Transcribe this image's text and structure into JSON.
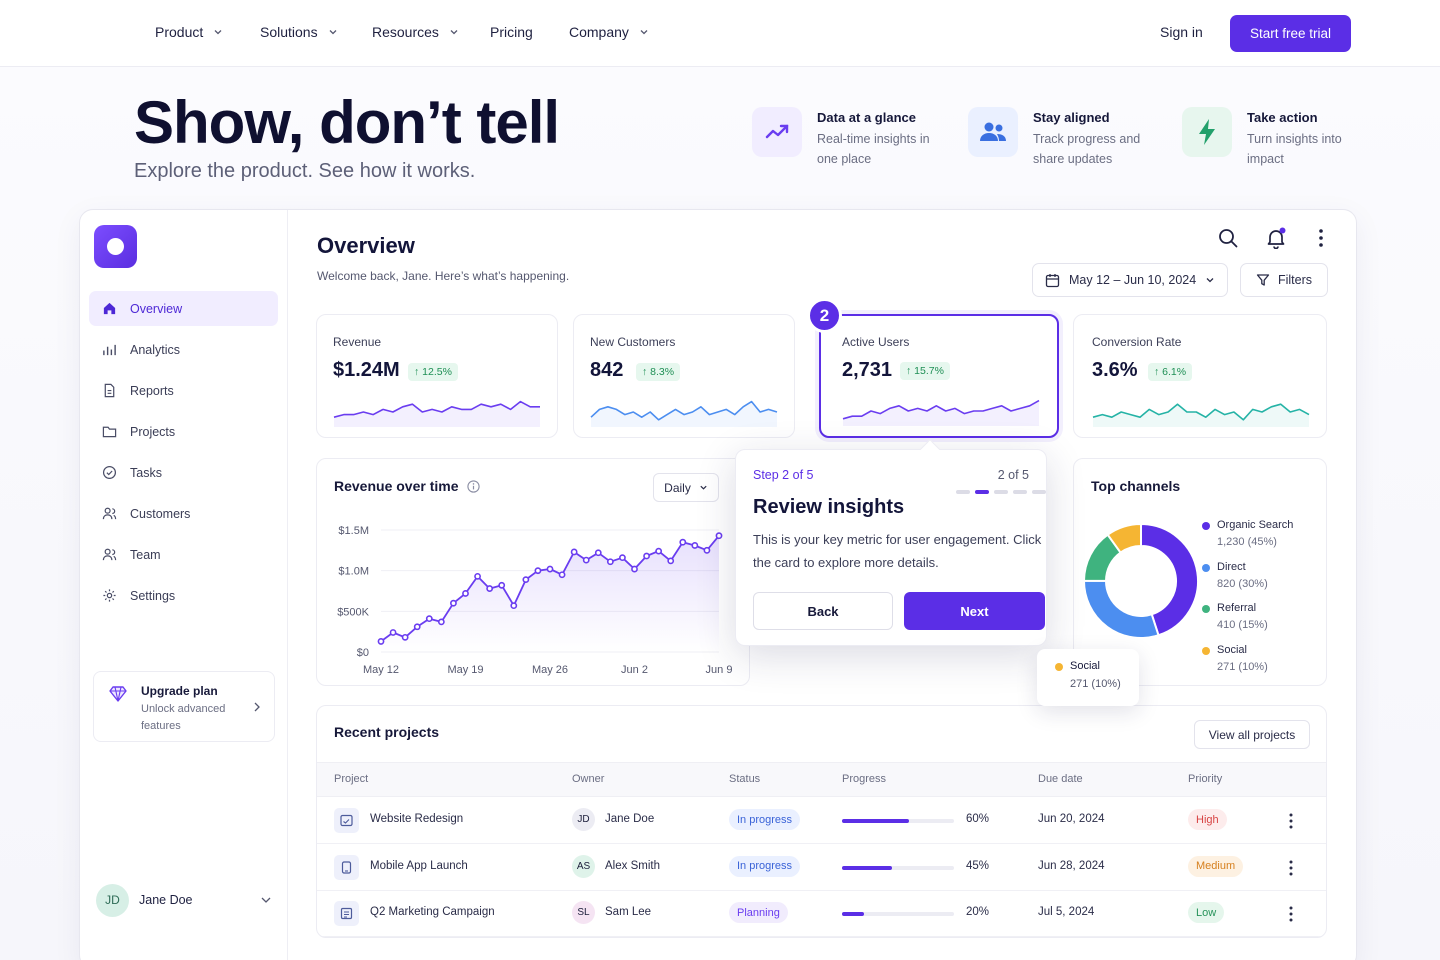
{
  "nav": {
    "items": [
      {
        "label": "Product",
        "has_menu": true
      },
      {
        "label": "Solutions",
        "has_menu": true
      },
      {
        "label": "Resources",
        "has_menu": true
      },
      {
        "label": "Pricing",
        "has_menu": false
      },
      {
        "label": "Company",
        "has_menu": true
      }
    ],
    "sign_in": "Sign in",
    "cta": "Start free trial"
  },
  "hero": {
    "title": "Show, don’t tell",
    "subtitle": "Explore the product. See how it works.",
    "features": [
      {
        "icon": "trend-chart-icon",
        "title": "Data at a glance",
        "desc": "Real-time insights in one place"
      },
      {
        "icon": "users-icon",
        "title": "Stay aligned",
        "desc": "Track progress and share updates"
      },
      {
        "icon": "lightning-icon",
        "title": "Take action",
        "desc": "Turn insights into impact"
      }
    ]
  },
  "sidebar": {
    "items": [
      {
        "label": "Overview",
        "icon": "home-icon",
        "active": true
      },
      {
        "label": "Analytics",
        "icon": "analytics-icon",
        "active": false
      },
      {
        "label": "Reports",
        "icon": "document-icon",
        "active": false
      },
      {
        "label": "Projects",
        "icon": "folder-icon",
        "active": false
      },
      {
        "label": "Tasks",
        "icon": "check-circle-icon",
        "active": false
      },
      {
        "label": "Customers",
        "icon": "customers-icon",
        "active": false
      },
      {
        "label": "Team",
        "icon": "team-icon",
        "active": false
      },
      {
        "label": "Settings",
        "icon": "gear-icon",
        "active": false
      }
    ],
    "upgrade": {
      "title": "Upgrade plan",
      "desc": "Unlock advanced features"
    },
    "user": {
      "initials": "JD",
      "name": "Jane Doe"
    }
  },
  "header": {
    "title": "Overview",
    "welcome": "Welcome back, Jane. Here’s what’s happening.",
    "date_range": "May 12 – Jun 10, 2024",
    "filters": "Filters"
  },
  "kpis": [
    {
      "label": "Revenue",
      "value": "$1.24M",
      "change": "↑ 12.5%",
      "color": "#6a3df0",
      "spark": [
        3,
        4,
        4,
        5,
        4,
        6,
        5,
        7,
        8,
        5,
        6,
        5,
        7,
        6,
        6,
        8,
        7,
        8,
        6,
        9,
        7,
        7
      ]
    },
    {
      "label": "New Customers",
      "value": "842",
      "change": "↑ 8.3%",
      "color": "#4c8ef0",
      "spark": [
        3,
        6,
        7,
        6,
        4,
        5,
        3,
        5,
        2,
        4,
        6,
        4,
        5,
        7,
        4,
        5,
        6,
        4,
        7,
        9,
        5,
        6,
        5
      ]
    },
    {
      "label": "Active Users",
      "value": "2,731",
      "change": "↑ 15.7%",
      "color": "#6a3df0",
      "spark": [
        2,
        3,
        3,
        5,
        4,
        6,
        7,
        5,
        6,
        5,
        7,
        5,
        6,
        4,
        5,
        5,
        6,
        7,
        5,
        6,
        7,
        9
      ]
    },
    {
      "label": "Conversion Rate",
      "value": "3.6%",
      "change": "↑ 6.1%",
      "color": "#25b3a6",
      "spark": [
        3,
        4,
        3,
        5,
        4,
        3,
        6,
        4,
        5,
        8,
        5,
        5,
        3,
        6,
        4,
        5,
        2,
        6,
        5,
        7,
        8,
        5,
        6,
        4
      ]
    }
  ],
  "tour": {
    "step_label": "Step 2 of 5",
    "count": "2 of 5",
    "step_number": "2",
    "total": 5,
    "current": 2,
    "title": "Review insights",
    "body": "This is your key metric for user engagement. Click the card to explore more details.",
    "back": "Back",
    "next": "Next"
  },
  "revenue_card": {
    "title": "Revenue over time",
    "period": "Daily"
  },
  "channels": {
    "title": "Top channels",
    "hover": {
      "name": "Social",
      "value": "271 (10%)"
    }
  },
  "chart_data": [
    {
      "type": "line",
      "title": "Revenue over time",
      "x": [
        "May 12",
        "May 13",
        "May 14",
        "May 15",
        "May 16",
        "May 17",
        "May 18",
        "May 19",
        "May 20",
        "May 21",
        "May 22",
        "May 23",
        "May 24",
        "May 25",
        "May 26",
        "May 27",
        "May 28",
        "May 29",
        "May 30",
        "May 31",
        "Jun 1",
        "Jun 2",
        "Jun 3",
        "Jun 4",
        "Jun 5",
        "Jun 6",
        "Jun 7",
        "Jun 8",
        "Jun 9"
      ],
      "values": [
        0.13,
        0.24,
        0.18,
        0.31,
        0.41,
        0.37,
        0.6,
        0.72,
        0.93,
        0.78,
        0.82,
        0.57,
        0.89,
        1.0,
        1.02,
        0.95,
        1.23,
        1.13,
        1.22,
        1.11,
        1.16,
        1.02,
        1.18,
        1.24,
        1.12,
        1.35,
        1.31,
        1.25,
        1.43
      ],
      "unit": "$M",
      "y_ticks": [
        "$0",
        "$500K",
        "$1.0M",
        "$1.5M"
      ],
      "ylim": [
        0,
        1.5
      ],
      "x_ticks": [
        "May 12",
        "May 19",
        "May 26",
        "Jun 2",
        "Jun 9"
      ],
      "color": "#6a3df0",
      "grid": true
    },
    {
      "type": "pie",
      "title": "Top channels",
      "categories": [
        "Organic Search",
        "Direct",
        "Referral",
        "Social"
      ],
      "values": [
        1230,
        820,
        410,
        271
      ],
      "labels": [
        "1,230 (45%)",
        "820 (30%)",
        "410 (15%)",
        "271 (10%)"
      ],
      "colors": [
        "#5b2ee6",
        "#4c8ef0",
        "#3fb37f",
        "#f5b533"
      ],
      "donut": true,
      "legend": "right"
    }
  ],
  "projects": {
    "title": "Recent projects",
    "view_all": "View all projects",
    "columns": [
      "Project",
      "Owner",
      "Status",
      "Progress",
      "Due date",
      "Priority"
    ],
    "rows": [
      {
        "name": "Website Redesign",
        "icon": "website-icon",
        "owner_initials": "JD",
        "owner": "Jane Doe",
        "owner_bg": "#ececf3",
        "status": "In progress",
        "status_bg": "#eaf0ff",
        "status_fg": "#3a63d8",
        "progress": 60,
        "progress_label": "60%",
        "due": "Jun 20, 2024",
        "priority": "High",
        "pri_bg": "#fdecec",
        "pri_fg": "#d84343"
      },
      {
        "name": "Mobile App Launch",
        "icon": "mobile-icon",
        "owner_initials": "AS",
        "owner": "Alex Smith",
        "owner_bg": "#dff3ea",
        "status": "In progress",
        "status_bg": "#eaf0ff",
        "status_fg": "#3a63d8",
        "progress": 45,
        "progress_label": "45%",
        "due": "Jun 28, 2024",
        "priority": "Medium",
        "pri_bg": "#fdf1e2",
        "pri_fg": "#d6801f"
      },
      {
        "name": "Q2 Marketing Campaign",
        "icon": "campaign-icon",
        "owner_initials": "SL",
        "owner": "Sam Lee",
        "owner_bg": "#f5e4f3",
        "status": "Planning",
        "status_bg": "#f1ecfd",
        "status_fg": "#6a3df0",
        "progress": 20,
        "progress_label": "20%",
        "due": "Jul 5, 2024",
        "priority": "Low",
        "pri_bg": "#e5f6ec",
        "pri_fg": "#27935a"
      }
    ]
  }
}
